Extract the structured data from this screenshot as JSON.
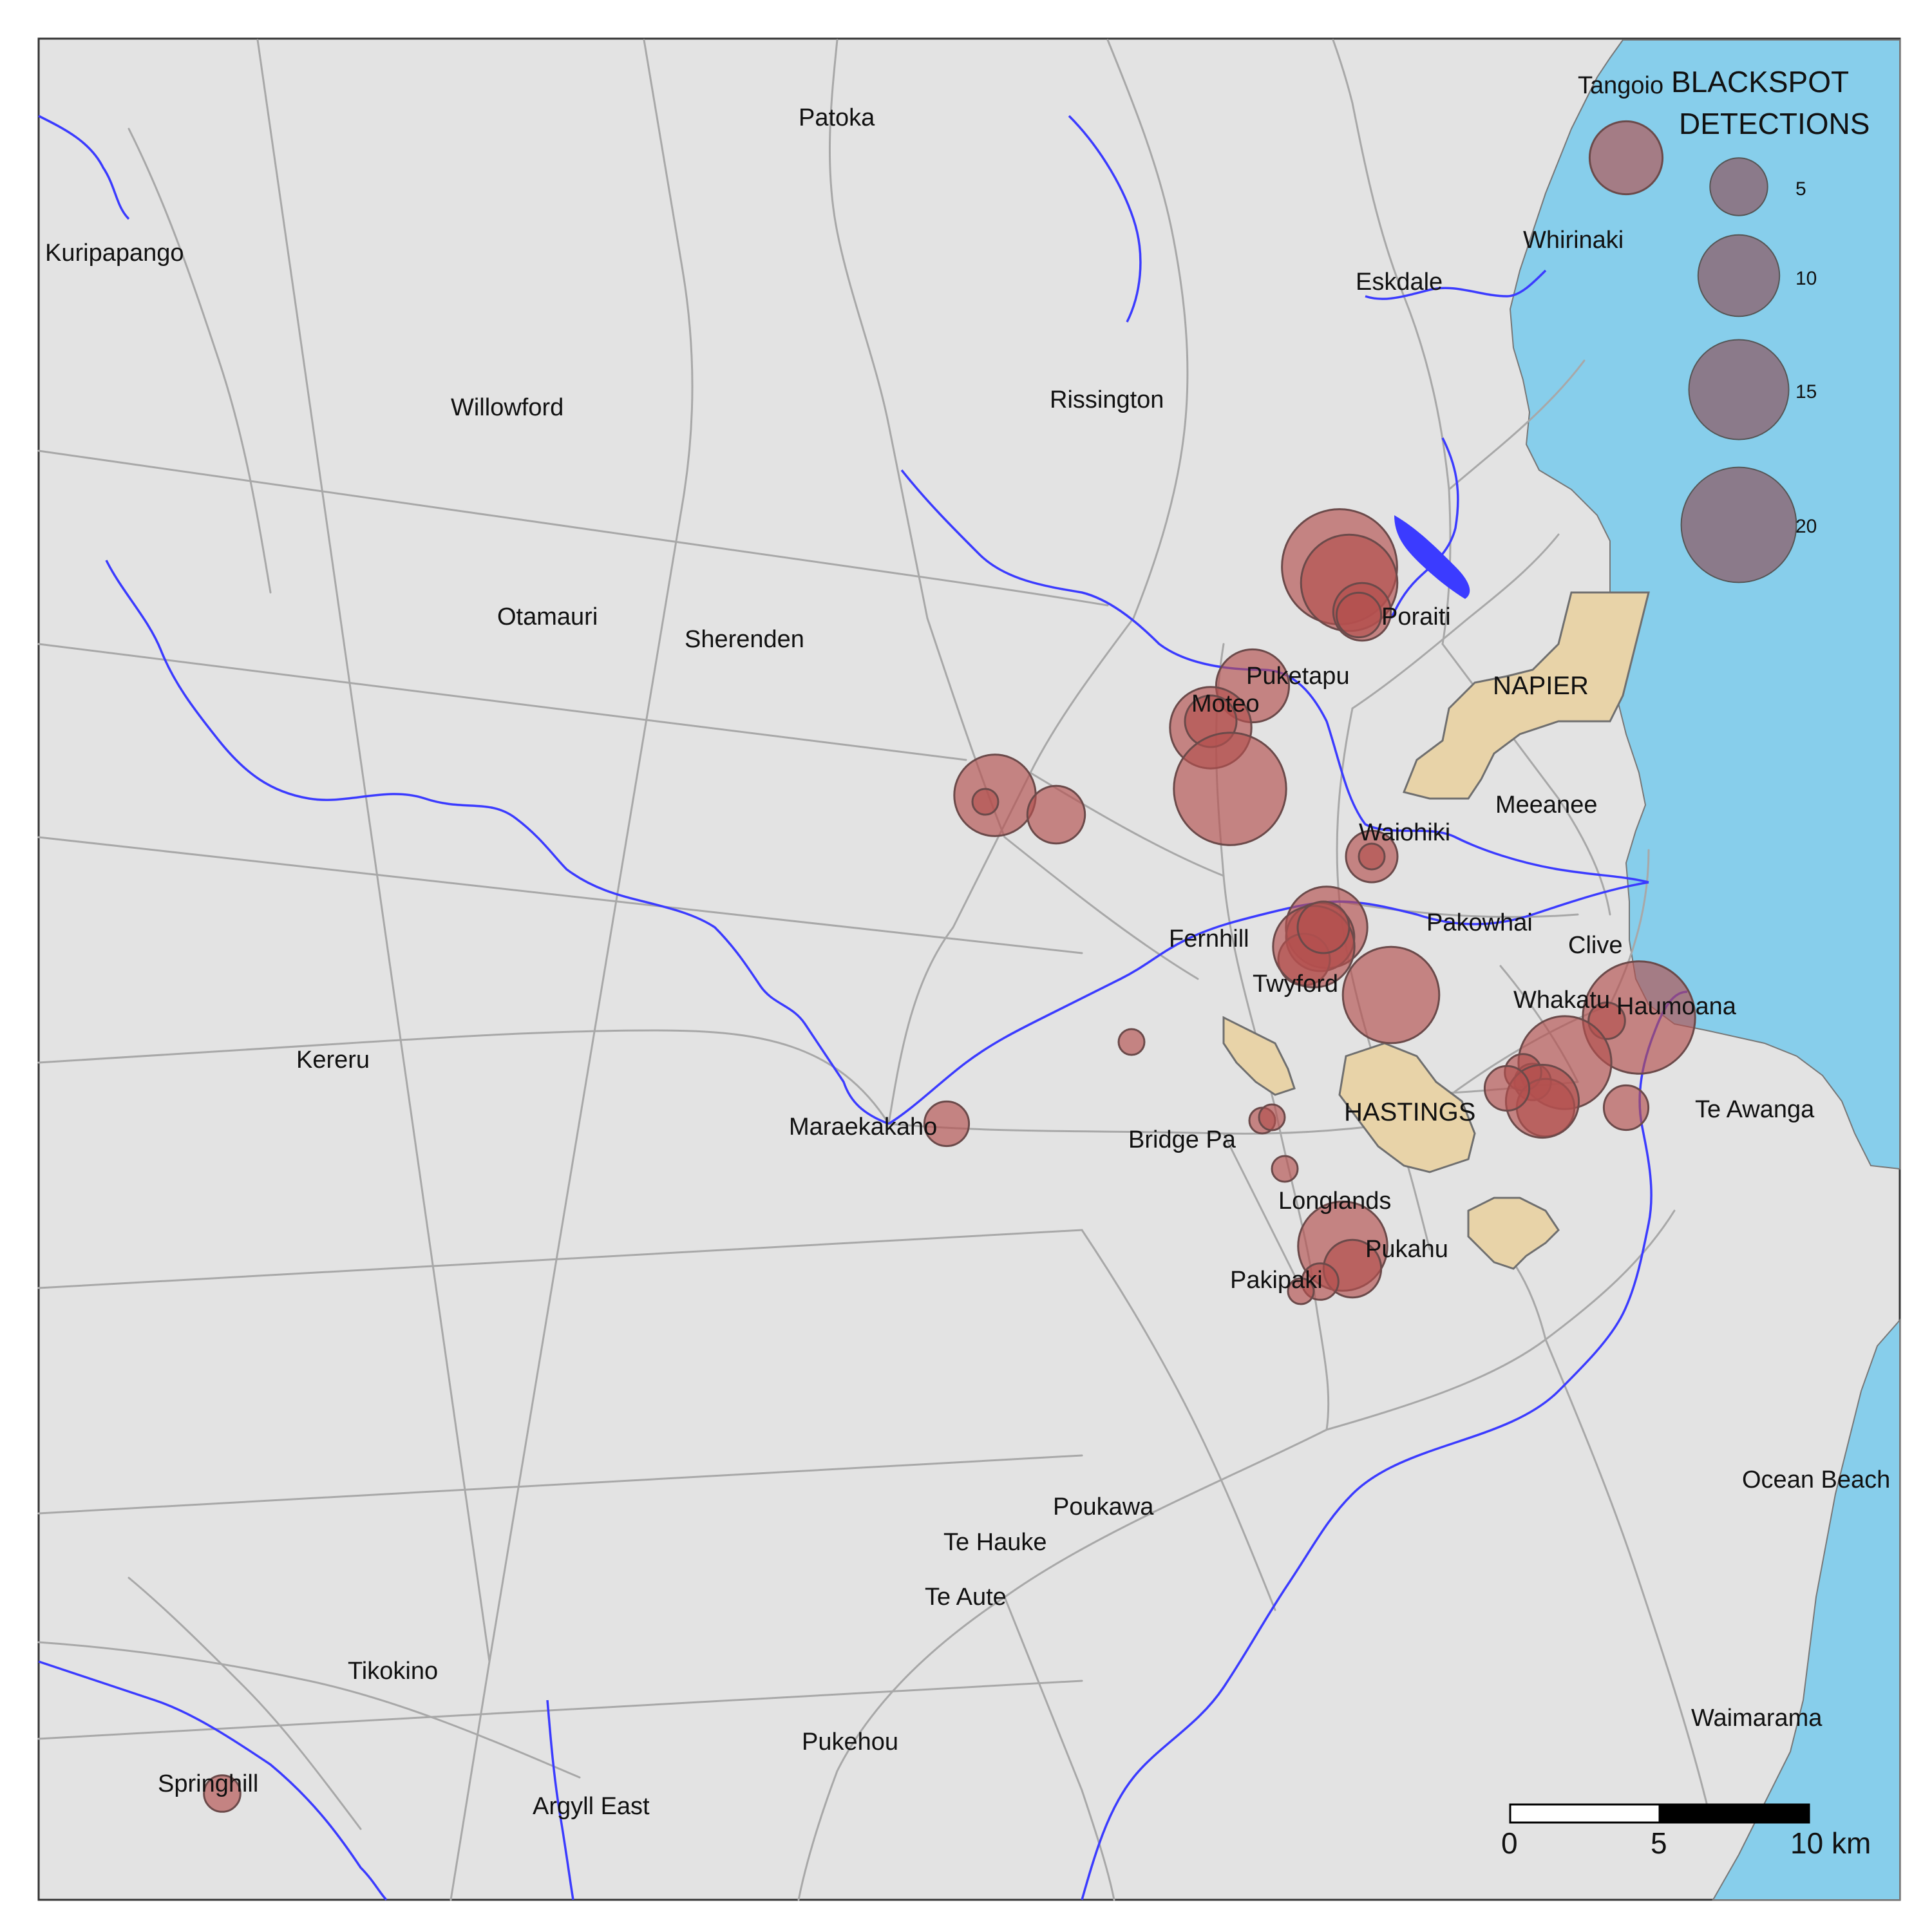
{
  "map": {
    "colors": {
      "land": "#e3e3e3",
      "sea": "#87ceeb",
      "road": "#a8a8a8",
      "river": "#3b3bff",
      "urban": "#e8d3a8",
      "urban_edge": "#6f6f6f",
      "blackspot": "#b3504f",
      "blackspot_edge": "#6b4a4a",
      "legend_circle": "#8c6b79"
    },
    "places": [
      {
        "id": "tangoio",
        "name": "Tangoio"
      },
      {
        "id": "patoka",
        "name": "Patoka"
      },
      {
        "id": "kuripapango",
        "name": "Kuripapango"
      },
      {
        "id": "whirinaki",
        "name": "Whirinaki"
      },
      {
        "id": "eskdale",
        "name": "Eskdale"
      },
      {
        "id": "willowford",
        "name": "Willowford"
      },
      {
        "id": "rissington",
        "name": "Rissington"
      },
      {
        "id": "poraiti",
        "name": "Poraiti"
      },
      {
        "id": "otamauri",
        "name": "Otamauri"
      },
      {
        "id": "sherenden",
        "name": "Sherenden"
      },
      {
        "id": "puketapu",
        "name": "Puketapu"
      },
      {
        "id": "moteo",
        "name": "Moteo"
      },
      {
        "id": "meeanee",
        "name": "Meeanee"
      },
      {
        "id": "waiohiki",
        "name": "Waiohiki"
      },
      {
        "id": "pakowhai",
        "name": "Pakowhai"
      },
      {
        "id": "fernhill",
        "name": "Fernhill"
      },
      {
        "id": "clive",
        "name": "Clive"
      },
      {
        "id": "twyford",
        "name": "Twyford"
      },
      {
        "id": "whakatu",
        "name": "Whakatu"
      },
      {
        "id": "haumoana",
        "name": "Haumoana"
      },
      {
        "id": "kereru",
        "name": "Kereru"
      },
      {
        "id": "maraekakaho",
        "name": "Maraekakaho"
      },
      {
        "id": "bridge-pa",
        "name": "Bridge Pa"
      },
      {
        "id": "te-awanga",
        "name": "Te Awanga"
      },
      {
        "id": "longlands",
        "name": "Longlands"
      },
      {
        "id": "pukahu",
        "name": "Pukahu"
      },
      {
        "id": "pakipaki",
        "name": "Pakipaki"
      },
      {
        "id": "ocean-beach",
        "name": "Ocean Beach"
      },
      {
        "id": "poukawa",
        "name": "Poukawa"
      },
      {
        "id": "te-hauke",
        "name": "Te Hauke"
      },
      {
        "id": "te-aute",
        "name": "Te Aute"
      },
      {
        "id": "tikokino",
        "name": "Tikokino"
      },
      {
        "id": "waimarama",
        "name": "Waimarama"
      },
      {
        "id": "pukehou",
        "name": "Pukehou"
      },
      {
        "id": "springhill",
        "name": "Springhill"
      },
      {
        "id": "argyll-east",
        "name": "Argyll East"
      }
    ],
    "towns": [
      {
        "id": "napier",
        "name": "NAPIER"
      },
      {
        "id": "hastings",
        "name": "HASTINGS"
      }
    ],
    "blackspots": [
      {
        "near": "Tangoio",
        "detections": 8
      },
      {
        "near": "Poraiti",
        "detections": 20
      },
      {
        "near": "Poraiti",
        "detections": 14
      },
      {
        "near": "Poraiti",
        "detections": 5
      },
      {
        "near": "Poraiti",
        "detections": 3
      },
      {
        "near": "Puketapu",
        "detections": 8
      },
      {
        "near": "Moteo",
        "detections": 10
      },
      {
        "near": "Moteo",
        "detections": 4
      },
      {
        "near": "Moteo",
        "detections": 19
      },
      {
        "near": "Sherenden",
        "detections": 10
      },
      {
        "near": "Sherenden",
        "detections": 1
      },
      {
        "near": "Sherenden",
        "detections": 5
      },
      {
        "near": "Waiohiki",
        "detections": 4
      },
      {
        "near": "Waiohiki",
        "detections": 1
      },
      {
        "near": "Fernhill",
        "detections": 10
      },
      {
        "near": "Fernhill",
        "detections": 7
      },
      {
        "near": "Fernhill",
        "detections": 4
      },
      {
        "near": "Twyford",
        "detections": 10
      },
      {
        "near": "Twyford",
        "detections": 4
      },
      {
        "near": "Twyford",
        "detections": 14
      },
      {
        "near": "Haumoana",
        "detections": 19
      },
      {
        "near": "Haumoana",
        "detections": 2
      },
      {
        "near": "Whakatu",
        "detections": 13
      },
      {
        "near": "Whakatu",
        "detections": 2
      },
      {
        "near": "Whakatu",
        "detections": 2
      },
      {
        "near": "Whakatu",
        "detections": 5
      },
      {
        "near": "Whakatu",
        "detections": 8
      },
      {
        "near": "Whakatu",
        "detections": 3
      },
      {
        "near": "Te Awanga",
        "detections": 3
      },
      {
        "near": "Bridge Pa",
        "detections": 1
      },
      {
        "near": "Bridge Pa",
        "detections": 1
      },
      {
        "near": "Bridge Pa",
        "detections": 1
      },
      {
        "near": "Maraekakaho",
        "detections": 3
      },
      {
        "near": "Longlands",
        "detections": 1
      },
      {
        "near": "Pukahu",
        "detections": 12
      },
      {
        "near": "Pukahu",
        "detections": 5
      },
      {
        "near": "Pakipaki",
        "detections": 2
      },
      {
        "near": "Pakipaki",
        "detections": 1
      },
      {
        "near": "Springhill",
        "detections": 2
      }
    ]
  },
  "legend": {
    "title_line1": "BLACKSPOT",
    "title_line2": "DETECTIONS",
    "items": [
      {
        "label": "5",
        "value": 5
      },
      {
        "label": "10",
        "value": 10
      },
      {
        "label": "15",
        "value": 15
      },
      {
        "label": "20",
        "value": 20
      }
    ]
  },
  "scale_bar": {
    "labels": [
      "0",
      "5",
      "10 km"
    ]
  }
}
